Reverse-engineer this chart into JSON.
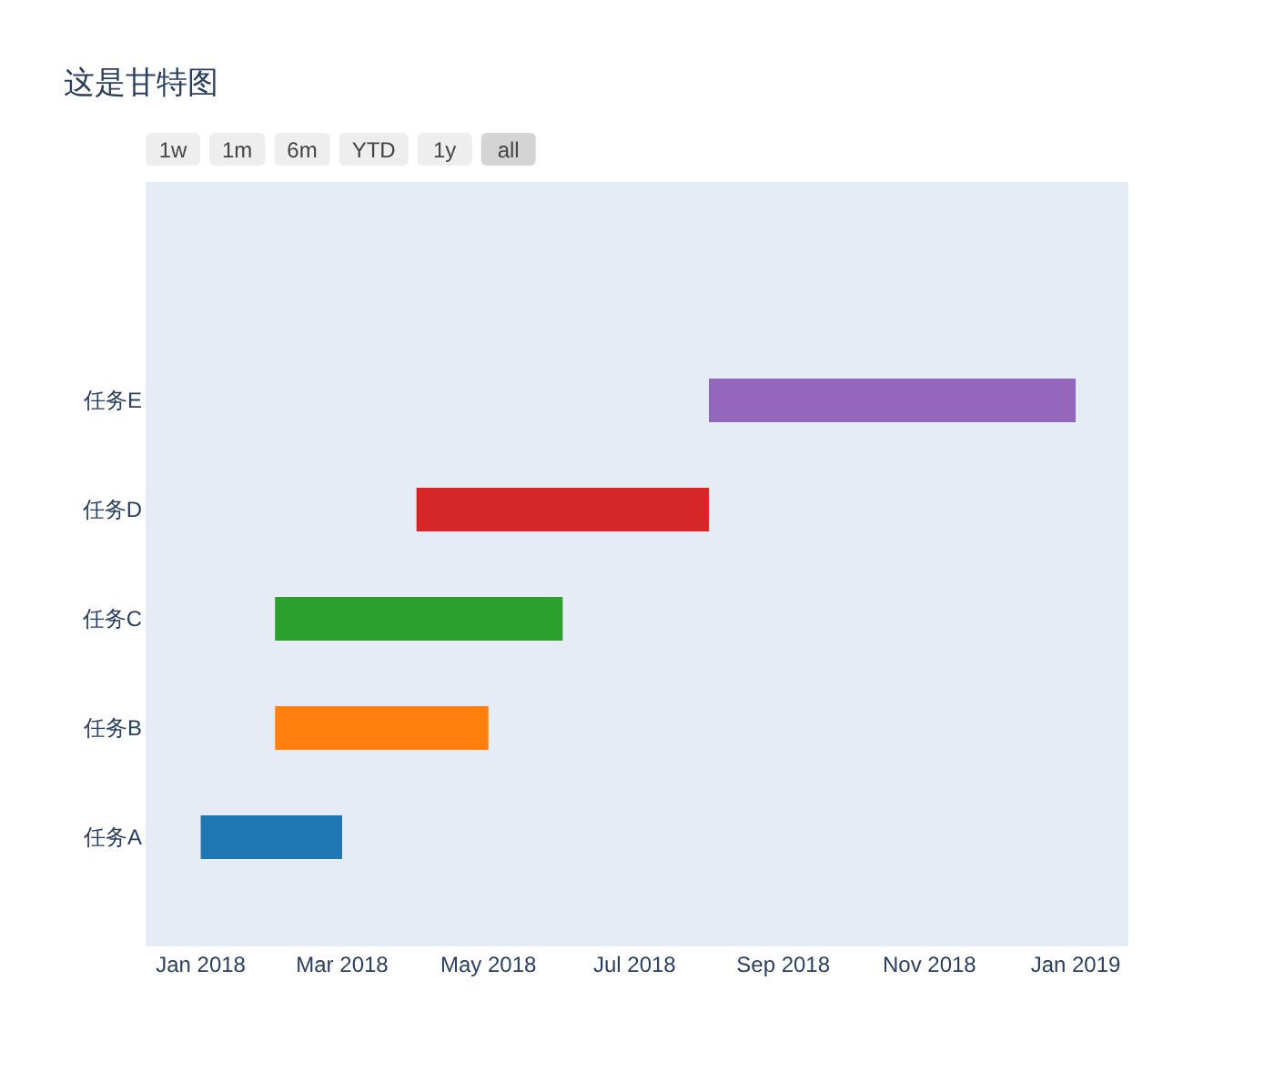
{
  "chart_data": {
    "type": "bar",
    "title": "这是甘特图",
    "orientation": "horizontal",
    "categories": [
      "任务E",
      "任务D",
      "任务C",
      "任务B",
      "任务A"
    ],
    "base": [
      17744,
      17622,
      17563,
      17563,
      17532
    ],
    "values": [
      153,
      122,
      120,
      89,
      59
    ],
    "colors": [
      "#9467bd",
      "#d62728",
      "#2ca02c",
      "#ff7f0e",
      "#1f77b4"
    ],
    "xlim": [
      "2017-12-09",
      "2019-01-23"
    ],
    "xticks": [
      {
        "value": "2018-01-01",
        "label": "Jan 2018"
      },
      {
        "value": "2018-03-01",
        "label": "Mar 2018"
      },
      {
        "value": "2018-05-01",
        "label": "May 2018"
      },
      {
        "value": "2018-07-01",
        "label": "Jul 2018"
      },
      {
        "value": "2018-09-01",
        "label": "Sep 2018"
      },
      {
        "value": "2018-11-01",
        "label": "Nov 2018"
      },
      {
        "value": "2019-01-01",
        "label": "Jan 2019"
      }
    ],
    "annotations": [
      "1w",
      "1m",
      "6m",
      "YTD",
      "1y",
      "all"
    ]
  }
}
